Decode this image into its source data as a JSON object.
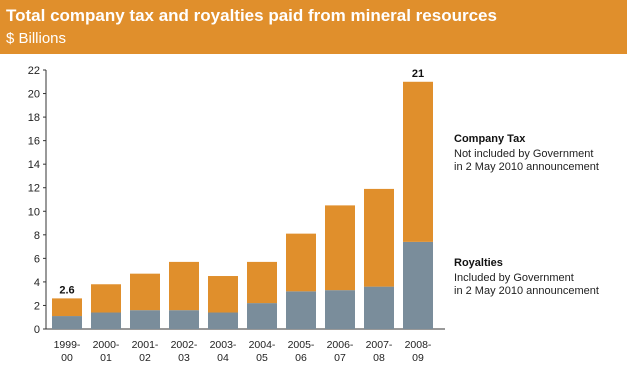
{
  "header": {
    "title": "Total company tax and royalties paid from mineral resources",
    "subtitle": "$ Billions"
  },
  "legend": {
    "company_tax": {
      "title": "Company Tax",
      "desc_line1": "Not included by Government",
      "desc_line2": "in 2 May 2010 announcement"
    },
    "royalties": {
      "title": "Royalties",
      "desc_line1": "Included by Government",
      "desc_line2": "in 2 May 2010 announcement"
    }
  },
  "colors": {
    "company_tax": "#e08f2c",
    "royalties": "#7a8d9b",
    "header_bg": "#e08f2c"
  },
  "chart_data": {
    "type": "bar",
    "stacked": true,
    "categories": [
      [
        "1999-",
        "00"
      ],
      [
        "2000-",
        "01"
      ],
      [
        "2001-",
        "02"
      ],
      [
        "2002-",
        "03"
      ],
      [
        "2003-",
        "04"
      ],
      [
        "2004-",
        "05"
      ],
      [
        "2005-",
        "06"
      ],
      [
        "2006-",
        "07"
      ],
      [
        "2007-",
        "08"
      ],
      [
        "2008-",
        "09"
      ]
    ],
    "series": [
      {
        "name": "Royalties",
        "values": [
          1.1,
          1.4,
          1.6,
          1.6,
          1.4,
          2.2,
          3.2,
          3.3,
          3.6,
          7.4
        ]
      },
      {
        "name": "Company Tax",
        "values": [
          1.5,
          2.4,
          3.1,
          4.1,
          3.1,
          3.5,
          4.9,
          7.2,
          8.3,
          13.6
        ]
      }
    ],
    "data_labels": [
      "2.6",
      "",
      "",
      "",
      "",
      "",
      "",
      "",
      "",
      "21"
    ],
    "ylim": [
      0,
      22
    ],
    "yticks": [
      "0",
      "2",
      "4",
      "6",
      "8",
      "10",
      "12",
      "14",
      "16",
      "18",
      "20",
      "22"
    ],
    "grid": false
  }
}
